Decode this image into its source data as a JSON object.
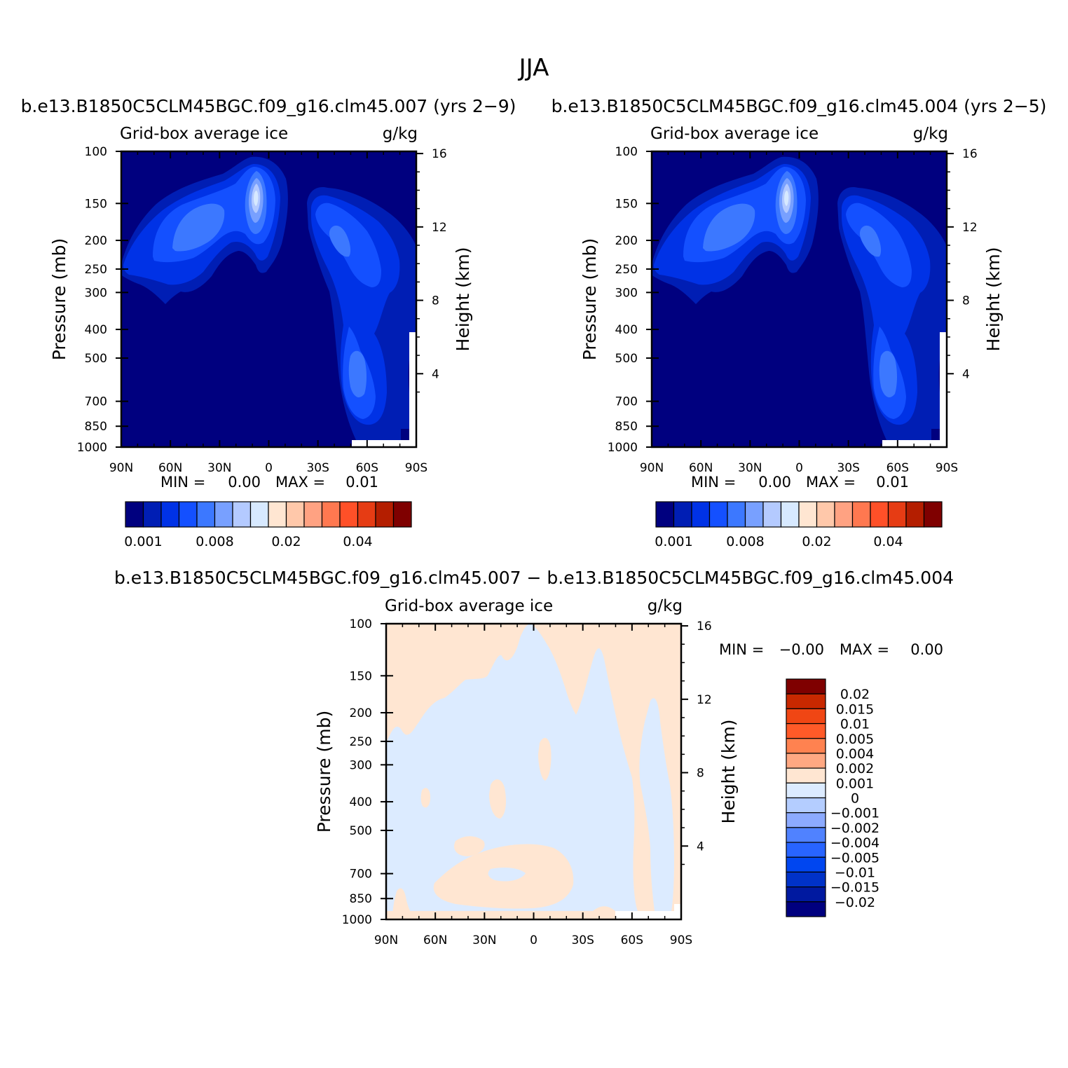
{
  "page": {
    "title": "JJA"
  },
  "colors": {
    "abs_levels": [
      "#00007f",
      "#001eb4",
      "#0032e6",
      "#1450ff",
      "#3c78ff",
      "#78a0ff",
      "#b4caff",
      "#d7e9ff",
      "#ffe6d2",
      "#ffc8aa",
      "#ffa282",
      "#ff7850",
      "#ff5028",
      "#e63c14",
      "#b41e00",
      "#7f0000"
    ],
    "diff_levels": [
      "#00007f",
      "#0019a0",
      "#0032c8",
      "#0046f0",
      "#2864ff",
      "#5082ff",
      "#8caaff",
      "#b4cdff",
      "#dcebff",
      "#ffe6d2",
      "#ffa882",
      "#ff8250",
      "#ff5a28",
      "#f04614",
      "#c82800",
      "#7f0000"
    ]
  },
  "chart_data": [
    {
      "type": "contour",
      "id": "left",
      "subtitle": "b.e13.B1850C5CLM45BGC.f09_g16.clm45.007 (yrs 2−9)",
      "variable": "Grid-box average ice",
      "units": "g/kg",
      "ylabel": "Pressure (mb)",
      "ylabel_right": "Height (km)",
      "x_ticks": [
        "90N",
        "60N",
        "30N",
        "0",
        "30S",
        "60S",
        "90S"
      ],
      "y_ticks": [
        100,
        150,
        200,
        250,
        300,
        400,
        500,
        700,
        850,
        1000
      ],
      "height_ticks": [
        16,
        12,
        8,
        4
      ],
      "stats": {
        "min_label": "MIN =",
        "min": "0.00",
        "max_label": "MAX =",
        "max": "0.01"
      },
      "colorbar_labels": [
        "0.001",
        "0.008",
        "0.02",
        "0.04"
      ],
      "features": [
        {
          "name": "tropical-upper-ice-max",
          "lat": -8,
          "p": 255,
          "level": 7
        },
        {
          "name": "nh-midlatitude-ice-band",
          "lat": 52,
          "p": 310,
          "level": 4
        },
        {
          "name": "sh-upper-ice-band",
          "lat": -43,
          "p": 370,
          "level": 4
        },
        {
          "name": "sh-lower-ice-band",
          "lat": -56,
          "p": 760,
          "level": 4
        }
      ]
    },
    {
      "type": "contour",
      "id": "right",
      "subtitle": "b.e13.B1850C5CLM45BGC.f09_g16.clm45.004 (yrs 2−5)",
      "variable": "Grid-box average ice",
      "units": "g/kg",
      "ylabel": "Pressure (mb)",
      "ylabel_right": "Height (km)",
      "x_ticks": [
        "90N",
        "60N",
        "30N",
        "0",
        "30S",
        "60S",
        "90S"
      ],
      "y_ticks": [
        100,
        150,
        200,
        250,
        300,
        400,
        500,
        700,
        850,
        1000
      ],
      "height_ticks": [
        16,
        12,
        8,
        4
      ],
      "stats": {
        "min_label": "MIN =",
        "min": "0.00",
        "max_label": "MAX =",
        "max": "0.01"
      },
      "colorbar_labels": [
        "0.001",
        "0.008",
        "0.02",
        "0.04"
      ],
      "features": [
        {
          "name": "tropical-upper-ice-max",
          "lat": -8,
          "p": 255,
          "level": 7
        },
        {
          "name": "nh-midlatitude-ice-band",
          "lat": 52,
          "p": 310,
          "level": 4
        },
        {
          "name": "sh-upper-ice-band",
          "lat": -43,
          "p": 370,
          "level": 4
        },
        {
          "name": "sh-lower-ice-band",
          "lat": -56,
          "p": 760,
          "level": 4
        }
      ]
    },
    {
      "type": "contour",
      "id": "diff",
      "subtitle": "b.e13.B1850C5CLM45BGC.f09_g16.clm45.007 − b.e13.B1850C5CLM45BGC.f09_g16.clm45.004",
      "variable": "Grid-box average ice",
      "units": "g/kg",
      "ylabel": "Pressure (mb)",
      "ylabel_right": "Height (km)",
      "x_ticks": [
        "90N",
        "60N",
        "30N",
        "0",
        "30S",
        "60S",
        "90S"
      ],
      "y_ticks": [
        100,
        150,
        200,
        250,
        300,
        400,
        500,
        700,
        850,
        1000
      ],
      "height_ticks": [
        16,
        12,
        8,
        4
      ],
      "stats": {
        "min_label": "MIN =",
        "min": "−0.00",
        "max_label": "MAX =",
        "max": "0.00"
      },
      "colorbar_labels": [
        "0.02",
        "0.015",
        "0.01",
        "0.005",
        "0.004",
        "0.002",
        "0.001",
        "0",
        "−0.001",
        "−0.002",
        "−0.004",
        "−0.005",
        "−0.01",
        "−0.015",
        "−0.02"
      ]
    }
  ]
}
